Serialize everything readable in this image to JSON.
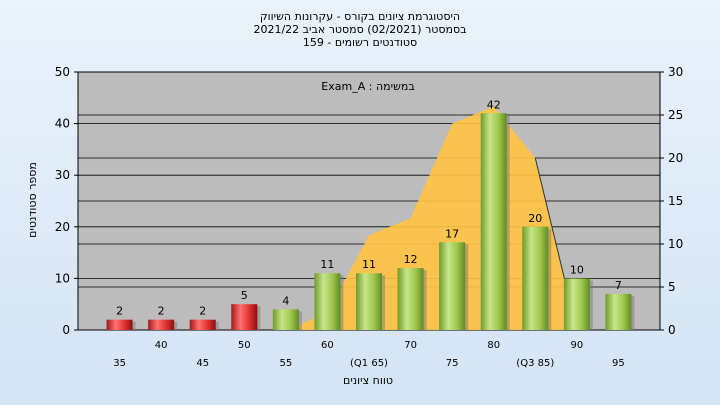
{
  "title": {
    "line1": "היסטוגרמת ציונים בקורס - עקרונות השיווק",
    "line2": "בסמסטר  (02/2021)  סמסטר אביב 2021/22",
    "line3": "סטודנטים רשומים - 159"
  },
  "chart_data": {
    "type": "bar",
    "annotation": "במשימה : Exam_A",
    "xlabel": "טווח ציונים",
    "ylabel": "מספר סטודנטים",
    "ylim": [
      0,
      50
    ],
    "y2lim": [
      0,
      30
    ],
    "yticks": [
      0,
      10,
      20,
      30,
      40,
      50
    ],
    "y2ticks": [
      0,
      5,
      10,
      15,
      20,
      25,
      30
    ],
    "categories": [
      "35",
      "40",
      "45",
      "50",
      "55",
      "60",
      "65",
      "70",
      "75",
      "80",
      "85",
      "90",
      "95"
    ],
    "category_labels": [
      "35",
      "40",
      "45",
      "50",
      "55",
      "60",
      "(Q1 65)",
      "70",
      "75",
      "80",
      "(Q3 85)",
      "90",
      "95"
    ],
    "values": [
      2,
      2,
      2,
      5,
      4,
      11,
      11,
      12,
      17,
      42,
      20,
      10,
      7
    ],
    "colors": {
      "fail": "#e03030",
      "pass": "#9dc64a",
      "area": "#ffc340",
      "plot_bg": "#bcbcbc"
    },
    "area_series": {
      "description_values": [
        0,
        0,
        0,
        0,
        0,
        2,
        11,
        13,
        24,
        26,
        20,
        0,
        0
      ]
    }
  }
}
